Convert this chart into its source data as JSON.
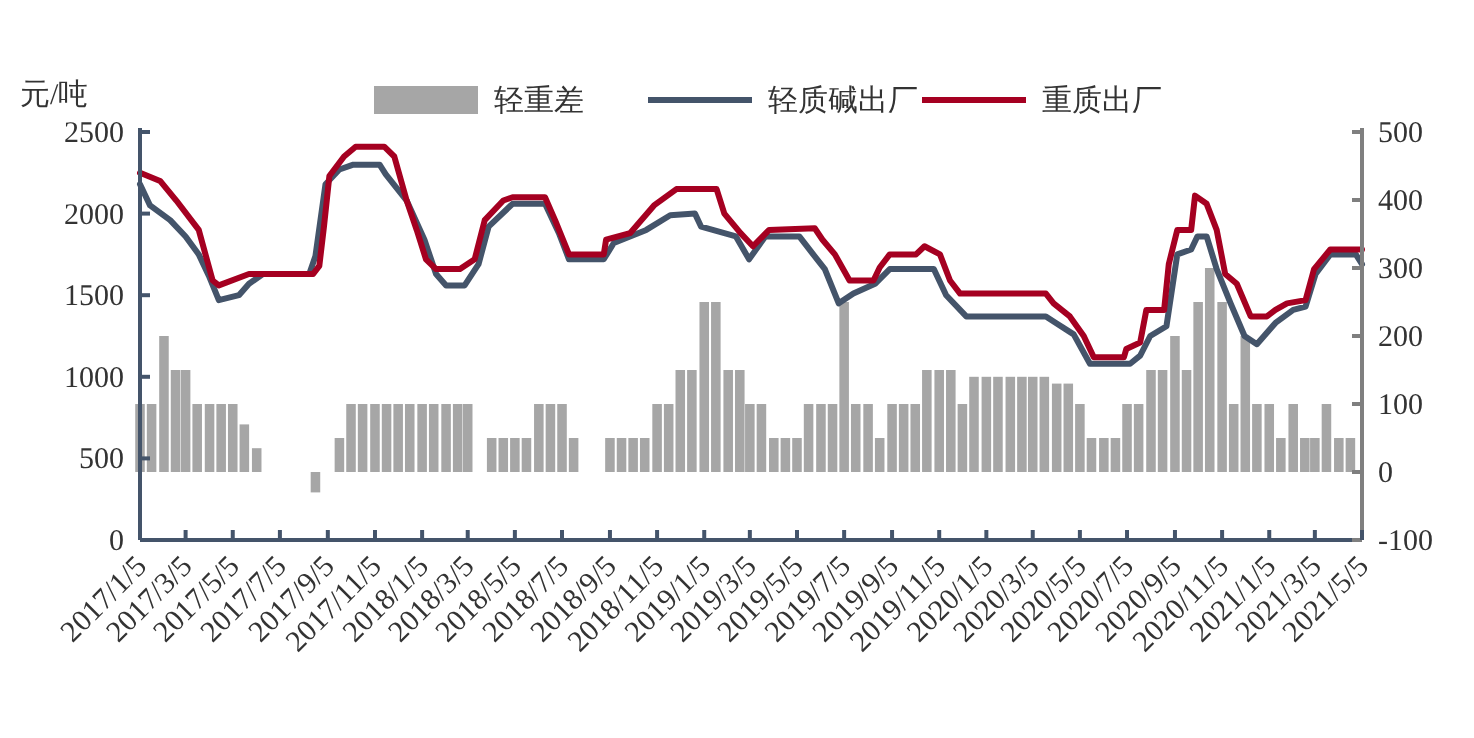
{
  "chart_data": {
    "type": "line",
    "ylabel": "元/吨",
    "legend": "top",
    "grid": false,
    "xlim": [
      "2017-01-05",
      "2021-05-05"
    ],
    "xticks": [
      {
        "value": "2017-01-05",
        "label": "2017/1/5"
      },
      {
        "value": "2017-03-05",
        "label": "2017/3/5"
      },
      {
        "value": "2017-05-05",
        "label": "2017/5/5"
      },
      {
        "value": "2017-07-05",
        "label": "2017/7/5"
      },
      {
        "value": "2017-09-05",
        "label": "2017/9/5"
      },
      {
        "value": "2017-11-05",
        "label": "2017/11/5"
      },
      {
        "value": "2018-01-05",
        "label": "2018/1/5"
      },
      {
        "value": "2018-03-05",
        "label": "2018/3/5"
      },
      {
        "value": "2018-05-05",
        "label": "2018/5/5"
      },
      {
        "value": "2018-07-05",
        "label": "2018/7/5"
      },
      {
        "value": "2018-09-05",
        "label": "2018/9/5"
      },
      {
        "value": "2018-11-05",
        "label": "2018/11/5"
      },
      {
        "value": "2019-01-05",
        "label": "2019/1/5"
      },
      {
        "value": "2019-03-05",
        "label": "2019/3/5"
      },
      {
        "value": "2019-05-05",
        "label": "2019/5/5"
      },
      {
        "value": "2019-07-05",
        "label": "2019/7/5"
      },
      {
        "value": "2019-09-05",
        "label": "2019/9/5"
      },
      {
        "value": "2019-11-05",
        "label": "2019/11/5"
      },
      {
        "value": "2020-01-05",
        "label": "2020/1/5"
      },
      {
        "value": "2020-03-05",
        "label": "2020/3/5"
      },
      {
        "value": "2020-05-05",
        "label": "2020/5/5"
      },
      {
        "value": "2020-07-05",
        "label": "2020/7/5"
      },
      {
        "value": "2020-09-05",
        "label": "2020/9/5"
      },
      {
        "value": "2020-11-05",
        "label": "2020/11/5"
      },
      {
        "value": "2021-01-05",
        "label": "2021/1/5"
      },
      {
        "value": "2021-03-05",
        "label": "2021/3/5"
      },
      {
        "value": "2021-05-05",
        "label": "2021/5/5"
      }
    ],
    "ylim": [
      0,
      2500
    ],
    "yticks": [
      0,
      500,
      1000,
      1500,
      2000,
      2500
    ],
    "y2lim": [
      -100,
      500
    ],
    "y2ticks": [
      -100,
      0,
      100,
      200,
      300,
      400,
      500
    ],
    "series": [
      {
        "name": "轻重差",
        "type": "bar",
        "axis": "y2",
        "color": "#a6a6a6",
        "x": [
          "2017-01-05",
          "2017-01-20",
          "2017-02-05",
          "2017-02-20",
          "2017-03-05",
          "2017-03-20",
          "2017-04-05",
          "2017-04-20",
          "2017-05-05",
          "2017-05-20",
          "2017-06-05",
          "2017-06-20",
          "2017-07-05",
          "2017-07-20",
          "2017-08-05",
          "2017-08-20",
          "2017-09-05",
          "2017-09-20",
          "2017-10-05",
          "2017-10-20",
          "2017-11-05",
          "2017-11-20",
          "2017-12-05",
          "2017-12-20",
          "2018-01-05",
          "2018-01-20",
          "2018-02-05",
          "2018-02-20",
          "2018-03-05",
          "2018-03-20",
          "2018-04-05",
          "2018-04-20",
          "2018-05-05",
          "2018-05-20",
          "2018-06-05",
          "2018-06-20",
          "2018-07-05",
          "2018-07-20",
          "2018-08-05",
          "2018-08-20",
          "2018-09-05",
          "2018-09-20",
          "2018-10-05",
          "2018-10-20",
          "2018-11-05",
          "2018-11-20",
          "2018-12-05",
          "2018-12-20",
          "2019-01-05",
          "2019-01-20",
          "2019-02-05",
          "2019-02-20",
          "2019-03-05",
          "2019-03-20",
          "2019-04-05",
          "2019-04-20",
          "2019-05-05",
          "2019-05-20",
          "2019-06-05",
          "2019-06-20",
          "2019-07-05",
          "2019-07-20",
          "2019-08-05",
          "2019-08-20",
          "2019-09-05",
          "2019-09-20",
          "2019-10-05",
          "2019-10-20",
          "2019-11-05",
          "2019-11-20",
          "2019-12-05",
          "2019-12-20",
          "2020-01-05",
          "2020-01-20",
          "2020-02-05",
          "2020-02-20",
          "2020-03-05",
          "2020-03-20",
          "2020-04-05",
          "2020-04-20",
          "2020-05-05",
          "2020-05-20",
          "2020-06-05",
          "2020-06-20",
          "2020-07-05",
          "2020-07-20",
          "2020-08-05",
          "2020-08-20",
          "2020-09-05",
          "2020-09-20",
          "2020-10-05",
          "2020-10-20",
          "2020-11-05",
          "2020-11-20",
          "2020-12-05",
          "2020-12-20",
          "2021-01-05",
          "2021-01-20",
          "2021-02-05",
          "2021-02-20",
          "2021-03-05",
          "2021-03-20",
          "2021-04-05",
          "2021-04-20"
        ],
        "values": [
          100,
          100,
          200,
          150,
          150,
          100,
          100,
          100,
          100,
          70,
          35,
          null,
          null,
          null,
          null,
          -30,
          null,
          50,
          100,
          100,
          100,
          100,
          100,
          100,
          100,
          100,
          100,
          100,
          100,
          null,
          50,
          50,
          50,
          50,
          100,
          100,
          100,
          50,
          null,
          null,
          50,
          50,
          50,
          50,
          100,
          100,
          150,
          150,
          250,
          250,
          150,
          150,
          100,
          100,
          50,
          50,
          50,
          100,
          100,
          100,
          250,
          100,
          100,
          50,
          100,
          100,
          100,
          150,
          150,
          150,
          100,
          140,
          140,
          140,
          140,
          140,
          140,
          140,
          130,
          130,
          100,
          50,
          50,
          50,
          100,
          100,
          150,
          150,
          200,
          150,
          250,
          300,
          250,
          100,
          200,
          100,
          100,
          50,
          100,
          50,
          50,
          100,
          50,
          50
        ]
      },
      {
        "name": "轻质碱出厂",
        "axis": "y",
        "color": "#44546a",
        "x": [
          "2017-01-05",
          "2017-01-18",
          "2017-02-13",
          "2017-03-05",
          "2017-03-22",
          "2017-04-04",
          "2017-04-17",
          "2017-05-13",
          "2017-05-26",
          "2017-06-13",
          "2017-08-12",
          "2017-08-20",
          "2017-09-02",
          "2017-09-20",
          "2017-10-08",
          "2017-11-11",
          "2017-11-19",
          "2017-12-16",
          "2018-01-08",
          "2018-01-23",
          "2018-02-05",
          "2018-03-01",
          "2018-03-19",
          "2018-04-01",
          "2018-05-02",
          "2018-06-13",
          "2018-07-01",
          "2018-07-14",
          "2018-08-28",
          "2018-09-10",
          "2018-10-22",
          "2018-11-22",
          "2018-12-24",
          "2019-01-01",
          "2019-02-15",
          "2019-03-04",
          "2019-03-25",
          "2019-05-08",
          "2019-05-26",
          "2019-06-10",
          "2019-06-28",
          "2019-07-17",
          "2019-08-14",
          "2019-09-02",
          "2019-10-29",
          "2019-11-14",
          "2019-12-10",
          "2020-03-22",
          "2020-04-04",
          "2020-04-27",
          "2020-05-18",
          "2020-07-09",
          "2020-07-22",
          "2020-08-04",
          "2020-08-25",
          "2020-09-08",
          "2020-09-26",
          "2020-10-04",
          "2020-10-16",
          "2020-10-29",
          "2020-11-16",
          "2020-12-04",
          "2020-12-20",
          "2021-01-13",
          "2021-02-05",
          "2021-02-21",
          "2021-03-06",
          "2021-03-25",
          "2021-04-27",
          "2021-05-05"
        ],
        "values": [
          2180,
          2050,
          1960,
          1860,
          1750,
          1620,
          1470,
          1500,
          1570,
          1630,
          1630,
          1740,
          2180,
          2270,
          2300,
          2300,
          2240,
          2080,
          1840,
          1630,
          1560,
          1560,
          1690,
          1920,
          2060,
          2060,
          1880,
          1720,
          1720,
          1820,
          1900,
          1990,
          2000,
          1920,
          1860,
          1720,
          1860,
          1860,
          1750,
          1660,
          1450,
          1510,
          1570,
          1660,
          1660,
          1500,
          1370,
          1370,
          1330,
          1260,
          1080,
          1080,
          1130,
          1250,
          1310,
          1750,
          1780,
          1860,
          1860,
          1660,
          1450,
          1250,
          1200,
          1330,
          1410,
          1430,
          1630,
          1750,
          1750,
          1690
        ]
      },
      {
        "name": "重质出厂",
        "axis": "y",
        "color": "#a50021",
        "x": [
          "2017-01-05",
          "2017-01-31",
          "2017-02-21",
          "2017-03-22",
          "2017-04-09",
          "2017-04-17",
          "2017-05-26",
          "2017-08-17",
          "2017-08-25",
          "2017-08-31",
          "2017-09-07",
          "2017-09-26",
          "2017-10-11",
          "2017-11-17",
          "2017-11-30",
          "2017-12-16",
          "2017-12-29",
          "2018-01-10",
          "2018-01-23",
          "2018-02-23",
          "2018-03-14",
          "2018-03-27",
          "2018-04-20",
          "2018-05-02",
          "2018-06-13",
          "2018-06-26",
          "2018-07-14",
          "2018-08-28",
          "2018-08-31",
          "2018-10-01",
          "2018-11-01",
          "2018-11-30",
          "2019-01-21",
          "2019-01-31",
          "2019-02-21",
          "2019-03-09",
          "2019-03-30",
          "2019-05-28",
          "2019-06-07",
          "2019-06-23",
          "2019-07-12",
          "2019-08-12",
          "2019-08-20",
          "2019-09-02",
          "2019-10-06",
          "2019-10-17",
          "2019-11-06",
          "2019-11-19",
          "2019-12-02",
          "2020-03-22",
          "2020-04-01",
          "2020-04-22",
          "2020-05-10",
          "2020-05-23",
          "2020-07-01",
          "2020-07-04",
          "2020-07-22",
          "2020-07-30",
          "2020-08-22",
          "2020-08-28",
          "2020-09-08",
          "2020-09-26",
          "2020-10-01",
          "2020-10-16",
          "2020-10-29",
          "2020-11-09",
          "2020-11-24",
          "2020-12-12",
          "2021-01-02",
          "2021-01-13",
          "2021-01-28",
          "2021-02-21",
          "2021-03-04",
          "2021-03-25",
          "2021-05-05"
        ],
        "values": [
          2250,
          2200,
          2080,
          1900,
          1590,
          1560,
          1630,
          1630,
          1680,
          1920,
          2230,
          2350,
          2410,
          2410,
          2350,
          2080,
          1900,
          1720,
          1660,
          1660,
          1720,
          1960,
          2080,
          2100,
          2100,
          1960,
          1750,
          1750,
          1840,
          1880,
          2050,
          2150,
          2150,
          2000,
          1880,
          1800,
          1900,
          1910,
          1840,
          1750,
          1590,
          1590,
          1670,
          1750,
          1750,
          1800,
          1750,
          1590,
          1510,
          1510,
          1450,
          1370,
          1250,
          1120,
          1120,
          1170,
          1210,
          1410,
          1410,
          1690,
          1900,
          1900,
          2110,
          2060,
          1900,
          1630,
          1570,
          1370,
          1370,
          1410,
          1450,
          1470,
          1660,
          1780,
          1780
        ]
      }
    ]
  }
}
